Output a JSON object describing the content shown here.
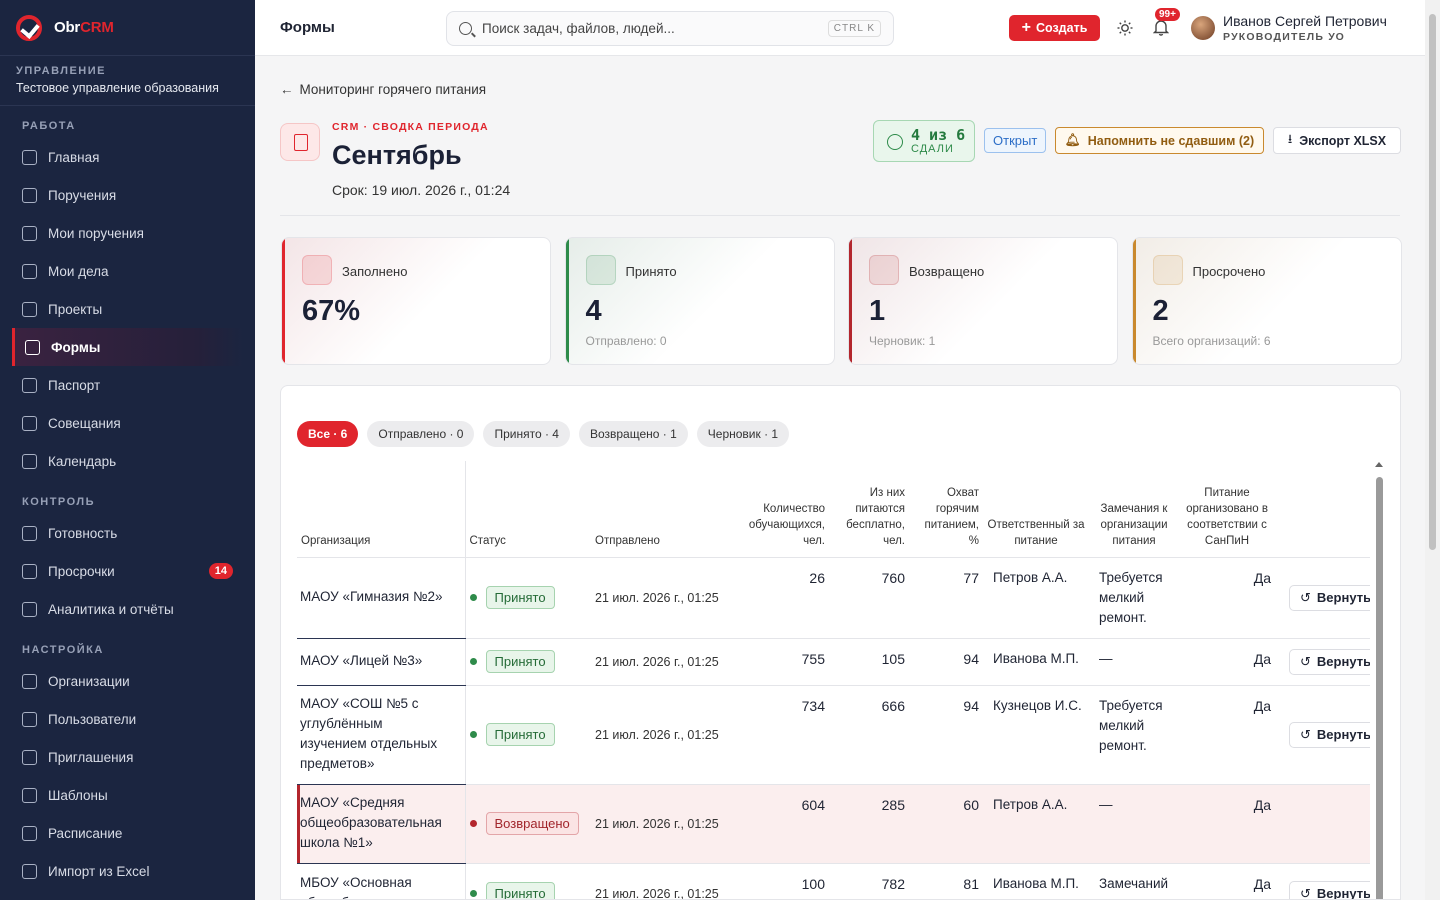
{
  "brand": {
    "name_a": "Obr",
    "name_b": "CRM"
  },
  "org": {
    "label": "УПРАВЛЕНИЕ",
    "name": "Тестовое управление образования"
  },
  "sidebar": {
    "sections": [
      {
        "title": "РАБОТА",
        "items": [
          {
            "label": "Главная",
            "icon": "home-icon"
          },
          {
            "label": "Поручения",
            "icon": "clipboard-icon"
          },
          {
            "label": "Мои поручения",
            "icon": "checkbox-icon"
          },
          {
            "label": "Мои дела",
            "icon": "list-check-icon"
          },
          {
            "label": "Проекты",
            "icon": "kanban-icon"
          },
          {
            "label": "Формы",
            "icon": "table-icon",
            "active": true
          },
          {
            "label": "Паспорт",
            "icon": "id-card-icon"
          },
          {
            "label": "Совещания",
            "icon": "calendar-icon"
          },
          {
            "label": "Календарь",
            "icon": "calendar-icon"
          }
        ]
      },
      {
        "title": "КОНТРОЛЬ",
        "items": [
          {
            "label": "Готовность",
            "icon": "gauge-icon"
          },
          {
            "label": "Просрочки",
            "icon": "warning-icon",
            "badge": "14"
          },
          {
            "label": "Аналитика и отчёты",
            "icon": "report-icon"
          }
        ]
      },
      {
        "title": "НАСТРОЙКА",
        "items": [
          {
            "label": "Организации",
            "icon": "building-icon"
          },
          {
            "label": "Пользователи",
            "icon": "users-icon"
          },
          {
            "label": "Приглашения",
            "icon": "send-icon"
          },
          {
            "label": "Шаблоны",
            "icon": "template-icon"
          },
          {
            "label": "Расписание",
            "icon": "schedule-icon"
          },
          {
            "label": "Импорт из Excel",
            "icon": "file-import-icon"
          }
        ]
      }
    ]
  },
  "topbar": {
    "title": "Формы",
    "search_placeholder": "Поиск задач, файлов, людей...",
    "shortcut": "CTRL K",
    "create_label": "Создать",
    "notif_badge": "99+",
    "user_name": "Иванов Сергей Петрович",
    "user_role": "РУКОВОДИТЕЛЬ УО"
  },
  "page": {
    "back_label": "Мониторинг горячего питания",
    "crumb": "CRM · СВОДКА ПЕРИОДА",
    "title": "Сентябрь",
    "deadline": "Срок: 19 июл. 2026 г., 01:24",
    "done_main": "4 из 6",
    "done_sub": "СДАЛИ",
    "status_pill": "Открыт",
    "remind_label": "Напомнить не сдавшим (2)",
    "export_label": "Экспорт XLSX"
  },
  "cards": [
    {
      "label": "Заполнено",
      "value": "67%",
      "sub": "",
      "color": "#e0252d",
      "icon": "percent-icon"
    },
    {
      "label": "Принято",
      "value": "4",
      "sub": "Отправлено: 0",
      "color": "#2e8b4a",
      "icon": "check-circle-icon"
    },
    {
      "label": "Возвращено",
      "value": "1",
      "sub": "Черновик: 1",
      "color": "#b3262d",
      "icon": "undo-icon"
    },
    {
      "label": "Просрочено",
      "value": "2",
      "sub": "Всего организаций: 6",
      "color": "#c9892e",
      "icon": "clock-icon"
    }
  ],
  "filters": [
    "Все · 6",
    "Отправлено · 0",
    "Принято · 4",
    "Возвращено · 1",
    "Черновик · 1"
  ],
  "table": {
    "headers": [
      "Организация",
      "Статус",
      "Отправлено",
      "Количество обучающихся, чел.",
      "Из них питаются бесплатно, чел.",
      "Охват горячим питанием, %",
      "Ответственный за питание",
      "Замечания к организации питания",
      "Питание организовано в соответствии с СанПиН",
      ""
    ],
    "return_label": "Вернуть",
    "rows": [
      {
        "org": "МАОУ «Гимназия №2»",
        "status": "Принято",
        "kind": "acc",
        "sent": "21 июл. 2026 г., 01:25",
        "students": "26",
        "free": "760",
        "coverage": "77",
        "resp": "Петров А.А.",
        "notes": "Требуется мелкий ремонт.",
        "sanpin": "Да"
      },
      {
        "org": "МАОУ «Лицей №3»",
        "status": "Принято",
        "kind": "acc",
        "sent": "21 июл. 2026 г., 01:25",
        "students": "755",
        "free": "105",
        "coverage": "94",
        "resp": "Иванова М.П.",
        "notes": "—",
        "sanpin": "Да"
      },
      {
        "org": "МАОУ «СОШ №5 с углублённым изучением отдельных предметов»",
        "status": "Принято",
        "kind": "acc",
        "sent": "21 июл. 2026 г., 01:25",
        "students": "734",
        "free": "666",
        "coverage": "94",
        "resp": "Кузнецов И.С.",
        "notes": "Требуется мелкий ремонт.",
        "sanpin": "Да"
      },
      {
        "org": "МАОУ «Средняя общеобразовательная школа №1»",
        "status": "Возвращено",
        "kind": "ret",
        "sent": "21 июл. 2026 г., 01:25",
        "students": "604",
        "free": "285",
        "coverage": "60",
        "resp": "Петров А.А.",
        "notes": "—",
        "sanpin": "Да"
      },
      {
        "org": "МБОУ «Основная общеобразовательная",
        "status": "Принято",
        "kind": "acc",
        "sent": "21 июл. 2026 г., 01:25",
        "students": "100",
        "free": "782",
        "coverage": "81",
        "resp": "Иванова М.П.",
        "notes": "Замечаний нет",
        "sanpin": "Да"
      }
    ]
  }
}
